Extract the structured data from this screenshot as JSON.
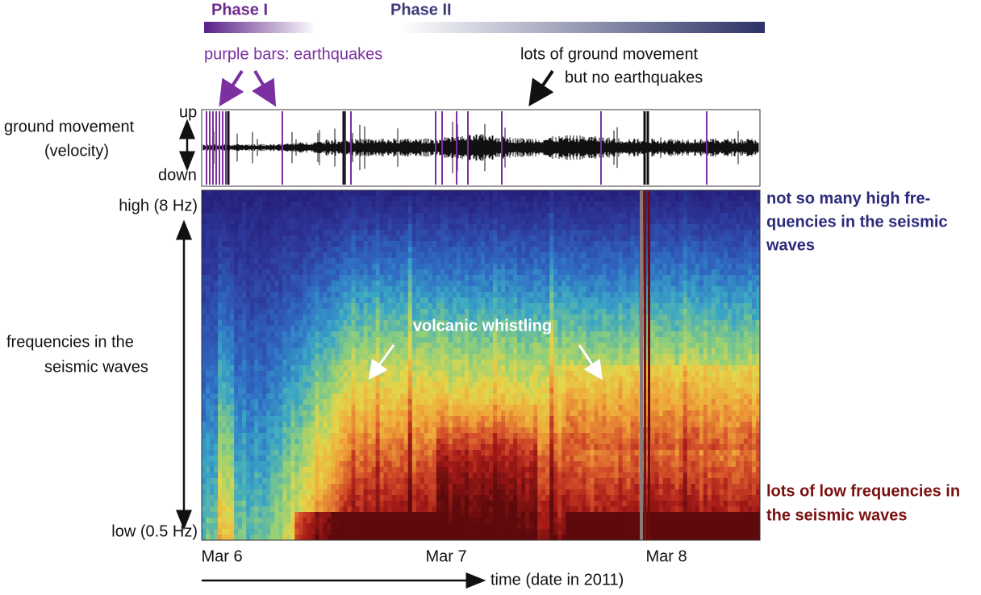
{
  "phase_bar": {
    "phase_1": "Phase I",
    "phase_2": "Phase II"
  },
  "annotations": {
    "earthquakes": "purple bars: earthquakes",
    "movement": [
      "lots of ground movement",
      "but no earthquakes"
    ],
    "whistling": "volcanic whistling"
  },
  "seismogram": {
    "label": [
      "ground movement",
      "(velocity)"
    ],
    "up": "up",
    "down": "down"
  },
  "spectrogram": {
    "label": [
      "frequencies in the",
      "seismic waves"
    ],
    "high": "high (8 Hz)",
    "low": "low (0.5 Hz)",
    "high_note": [
      "not so many high fre-",
      "quencies in the seismic",
      "waves"
    ],
    "low_note": [
      "lots of low frequencies in",
      "the seismic waves"
    ]
  },
  "time_axis": {
    "ticks": [
      "Mar 6",
      "Mar 7",
      "Mar 8"
    ],
    "label": "time (date in 2011)"
  }
}
